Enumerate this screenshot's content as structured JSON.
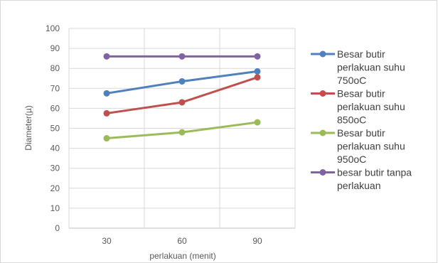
{
  "chart_data": {
    "type": "line",
    "title": "",
    "xlabel": "perlakuan (menit)",
    "ylabel": "Diameter(µ)",
    "categories": [
      "30",
      "60",
      "90"
    ],
    "ylim": [
      0,
      100
    ],
    "yticks": [
      "0",
      "10",
      "20",
      "30",
      "40",
      "50",
      "60",
      "70",
      "80",
      "90",
      "100"
    ],
    "grid": true,
    "legend_position": "right",
    "series": [
      {
        "name": "Besar butir perlakuan suhu 750oC",
        "legend_lines": [
          "Besar butir",
          "perlakuan suhu",
          "750oC"
        ],
        "color": "#4f81bd",
        "values": [
          67.5,
          73.5,
          78.5
        ]
      },
      {
        "name": "Besar butir perlakuan suhu 850oC",
        "legend_lines": [
          "Besar butir",
          "perlakuan suhu",
          "850oC"
        ],
        "color": "#c0504d",
        "values": [
          57.5,
          63,
          75.5
        ]
      },
      {
        "name": "Besar butir perlakuan suhu 950oC",
        "legend_lines": [
          "Besar butir",
          "perlakuan suhu",
          "950oC"
        ],
        "color": "#9bbb59",
        "values": [
          45,
          48,
          53
        ]
      },
      {
        "name": "besar butir tanpa perlakuan",
        "legend_lines": [
          "besar butir tanpa",
          "perlakuan"
        ],
        "color": "#8064a2",
        "values": [
          86,
          86,
          86
        ]
      }
    ]
  }
}
